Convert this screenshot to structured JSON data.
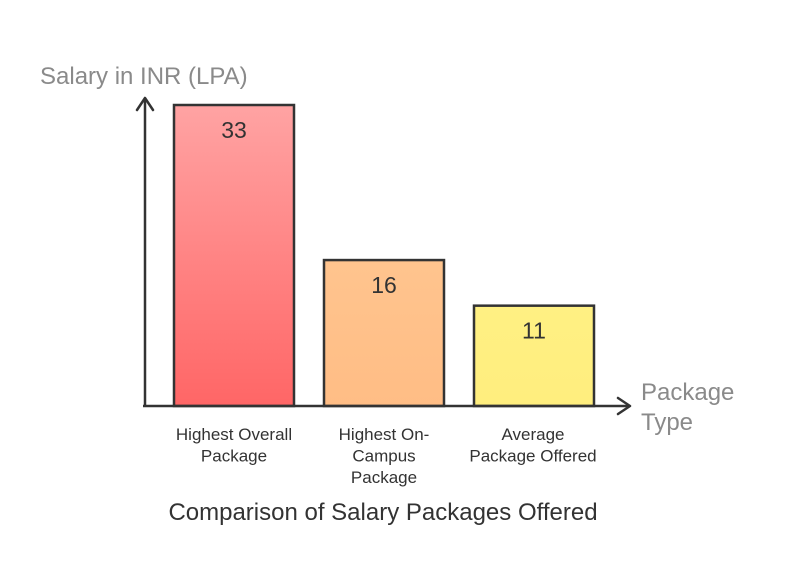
{
  "chart_data": {
    "type": "bar",
    "title": "Comparison of Salary Packages Offered",
    "ylabel": "Salary in INR (LPA)",
    "xlabel": "Package Type",
    "categories": [
      "Highest Overall Package",
      "Highest On-Campus Package",
      "Average Package Offered"
    ],
    "category_label_lines": [
      [
        "Highest Overall",
        "Package"
      ],
      [
        "Highest On-",
        "Campus",
        "Package"
      ],
      [
        "Average",
        "Package Offered"
      ]
    ],
    "values": [
      33,
      16,
      11
    ],
    "ylim": [
      0,
      33
    ],
    "grid": false,
    "legend": "none",
    "colors": {
      "axis": "#333333",
      "bar_stroke": "#333333",
      "bars": [
        {
          "top": "#ffa3a3",
          "bottom": "#ff6666"
        },
        {
          "top": "#ffc48e",
          "bottom": "#ffbd85"
        },
        {
          "top": "#fff083",
          "bottom": "#ffee7e"
        }
      ],
      "axis_title": "#8a8a8a",
      "text": "#333333"
    }
  }
}
